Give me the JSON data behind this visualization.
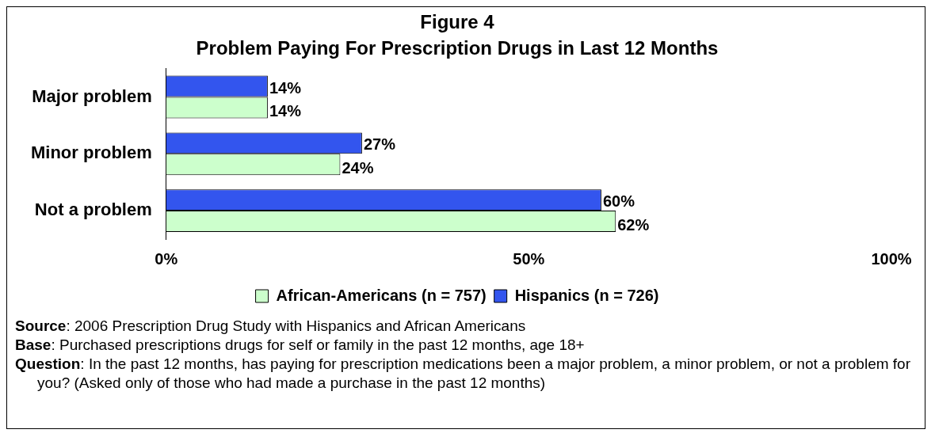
{
  "chart_data": {
    "type": "bar",
    "orientation": "horizontal",
    "title": "Figure 4",
    "subtitle": "Problem Paying For Prescription Drugs in Last 12 Months",
    "categories": [
      "Major problem",
      "Minor problem",
      "Not a problem"
    ],
    "series": [
      {
        "name": "Hispanics (n = 726)",
        "color": "#3355ee",
        "values": [
          14,
          27,
          60
        ],
        "value_labels": [
          "14%",
          "27%",
          "60%"
        ]
      },
      {
        "name": "African-Americans (n = 757)",
        "color": "#ccffcc",
        "values": [
          14,
          24,
          62
        ],
        "value_labels": [
          "14%",
          "24%",
          "62%"
        ]
      }
    ],
    "xlim": [
      0,
      100
    ],
    "xticks": [
      {
        "value": 0,
        "label": "0%"
      },
      {
        "value": 50,
        "label": "50%"
      },
      {
        "value": 100,
        "label": "100%"
      }
    ],
    "grid": false,
    "legend": "bottom",
    "annotations": [
      "Source: 2006 Prescription Drug Study with Hispanics and African Americans",
      "Base:  Purchased prescriptions drugs for self or family in the past 12 months, age 18+",
      "Question: In the past 12 months, has paying for prescription medications been a major problem, a minor problem, or not a problem for you?  (Asked only of those who had made a purchase in the past 12 months)"
    ]
  }
}
